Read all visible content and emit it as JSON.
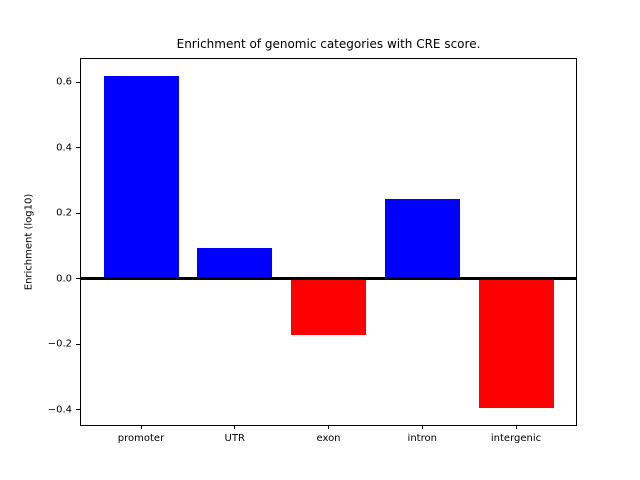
{
  "chart_data": {
    "type": "bar",
    "title": "Enrichment of genomic categories with CRE score.",
    "xlabel": "",
    "ylabel": "Enrichment (log10)",
    "categories": [
      "promoter",
      "UTR",
      "exon",
      "intron",
      "intergenic"
    ],
    "values": [
      0.62,
      0.095,
      -0.17,
      0.245,
      -0.395
    ],
    "bar_colors": [
      "#0000ff",
      "#0000ff",
      "#ff0000",
      "#0000ff",
      "#ff0000"
    ],
    "positive_color": "#0000ff",
    "negative_color": "#ff0000",
    "bar_width": 0.8,
    "x_range": [
      -0.64,
      4.64
    ],
    "ylim": [
      -0.446,
      0.671
    ],
    "yticks": [
      0.6,
      0.4,
      0.2,
      0.0,
      -0.2,
      -0.4
    ],
    "ytick_labels": [
      "0.6",
      "0.4",
      "0.2",
      "0.0",
      "−0.2",
      "−0.4"
    ],
    "grid": false,
    "legend": false,
    "zero_line": true,
    "background_color": "#ffffff",
    "spine_color": "#000000",
    "text_color": "#000000"
  }
}
